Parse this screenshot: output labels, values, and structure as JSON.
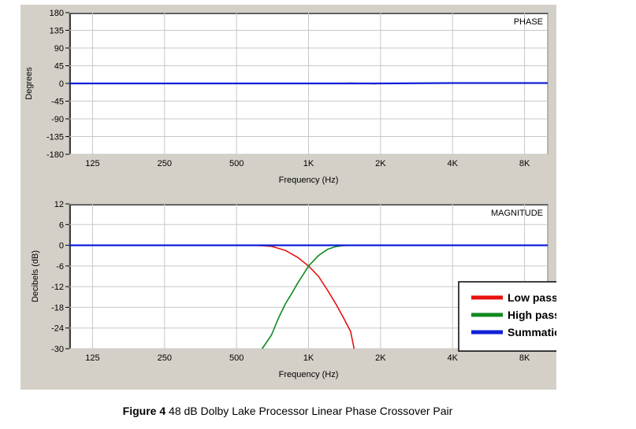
{
  "caption": {
    "figure_label": "Figure 4",
    "text": "48 dB Dolby Lake Processor Linear Phase Crossover Pair"
  },
  "legend": {
    "entries": [
      {
        "label": "Low pass",
        "color": "#e81010"
      },
      {
        "label": "High pass",
        "color": "#108a20"
      },
      {
        "label": "Summation",
        "color": "#1020d8"
      }
    ]
  },
  "chart_data": [
    {
      "type": "line",
      "title": "PHASE",
      "xlabel": "Frequency (Hz)",
      "ylabel": "Degrees",
      "x_scale": "log",
      "xlim": [
        100,
        10000
      ],
      "ylim": [
        -180,
        180
      ],
      "x_ticks": [
        125,
        250,
        500,
        1000,
        2000,
        4000,
        8000
      ],
      "x_tick_labels": [
        "125",
        "250",
        "500",
        "1K",
        "2K",
        "4K",
        "8K"
      ],
      "y_ticks": [
        180,
        135,
        90,
        45,
        0,
        -45,
        -90,
        -135,
        -180
      ],
      "y_tick_labels": [
        "180",
        "135",
        "90",
        "45",
        "0",
        "-45",
        "-90",
        "-135",
        "-180"
      ],
      "grid": true,
      "series": [
        {
          "name": "Low pass",
          "color": "#e81010",
          "x": [
            1300,
            1500,
            1700,
            1900,
            2000
          ],
          "y": [
            0,
            1,
            0,
            -1,
            1
          ]
        },
        {
          "name": "Summation",
          "color": "#1020d8",
          "x": [
            100,
            500,
            1000,
            2000,
            4000,
            8000,
            10000
          ],
          "y": [
            0,
            0,
            0,
            0,
            1,
            1,
            1
          ]
        }
      ]
    },
    {
      "type": "line",
      "title": "MAGNITUDE",
      "xlabel": "Frequency (Hz)",
      "ylabel": "Decibels (dB)",
      "x_scale": "log",
      "xlim": [
        100,
        10000
      ],
      "ylim": [
        -30,
        12
      ],
      "x_ticks": [
        125,
        250,
        500,
        1000,
        2000,
        4000,
        8000
      ],
      "x_tick_labels": [
        "125",
        "250",
        "500",
        "1K",
        "2K",
        "4K",
        "8K"
      ],
      "y_ticks": [
        12,
        6,
        0,
        -6,
        -12,
        -18,
        -24,
        -30
      ],
      "y_tick_labels": [
        "12",
        "6",
        "0",
        "-6",
        "-12",
        "-18",
        "-24",
        "-30"
      ],
      "grid": true,
      "legend_position": "bottom-right",
      "series": [
        {
          "name": "Low pass",
          "color": "#e81010",
          "x": [
            100,
            500,
            600,
            700,
            800,
            900,
            1000,
            1100,
            1200,
            1300,
            1400,
            1500,
            1550
          ],
          "y": [
            0,
            0,
            0,
            -0.3,
            -1.5,
            -3.5,
            -6,
            -9,
            -13,
            -17,
            -21,
            -25,
            -30
          ]
        },
        {
          "name": "High pass",
          "color": "#108a20",
          "x": [
            640,
            700,
            750,
            800,
            850,
            900,
            950,
            1000,
            1050,
            1100,
            1200,
            1300,
            1400,
            1500,
            2000,
            10000
          ],
          "y": [
            -30,
            -26,
            -21,
            -17,
            -14,
            -11,
            -8.5,
            -6,
            -4.5,
            -3,
            -1.2,
            -0.4,
            -0.1,
            0,
            0,
            0
          ]
        },
        {
          "name": "Summation",
          "color": "#1020d8",
          "x": [
            100,
            500,
            1000,
            2000,
            4000,
            8000,
            10000
          ],
          "y": [
            0,
            0,
            0,
            0,
            0,
            0,
            0
          ]
        }
      ]
    }
  ]
}
